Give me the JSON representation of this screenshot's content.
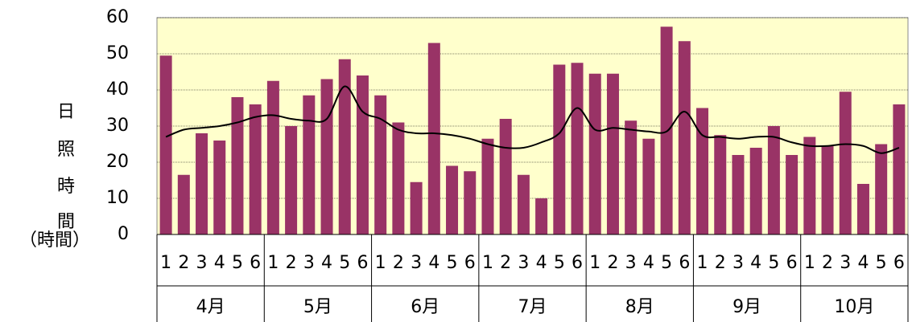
{
  "chart_data": {
    "type": "bar",
    "y_label_lines": [
      "日",
      "照",
      "時",
      "間",
      "（時間）"
    ],
    "categories": [
      "1",
      "2",
      "3",
      "4",
      "5",
      "6",
      "1",
      "2",
      "3",
      "4",
      "5",
      "6",
      "1",
      "2",
      "3",
      "4",
      "5",
      "6",
      "1",
      "2",
      "3",
      "4",
      "5",
      "6",
      "1",
      "2",
      "3",
      "4",
      "5",
      "6",
      "1",
      "2",
      "3",
      "4",
      "5",
      "6",
      "1",
      "2",
      "3",
      "4",
      "5",
      "6"
    ],
    "groups": [
      "4月",
      "5月",
      "6月",
      "7月",
      "8月",
      "9月",
      "10月"
    ],
    "series": [
      {
        "type": "bar",
        "color": "#993366",
        "values": [
          49.5,
          16.5,
          28,
          26,
          38,
          36,
          42.5,
          30,
          38.5,
          43,
          48.5,
          44,
          38.5,
          31,
          14.5,
          53,
          19,
          17.5,
          26.5,
          32,
          16.5,
          10,
          47,
          47.5,
          44.5,
          44.5,
          31.5,
          26.5,
          57.5,
          53.5,
          35,
          27.5,
          22,
          24,
          30,
          22,
          27,
          24.5,
          39.5,
          14,
          25,
          36
        ]
      },
      {
        "type": "line",
        "color": "#000000",
        "values": [
          27,
          29,
          29.5,
          30,
          31,
          32.5,
          33,
          32,
          31.5,
          32,
          41,
          34,
          32,
          29,
          28,
          28,
          27.5,
          26.5,
          25,
          24,
          24,
          25.5,
          28,
          35,
          29,
          29.5,
          29,
          28.5,
          28.5,
          34,
          27.5,
          27,
          26.5,
          27,
          27,
          25.5,
          24.5,
          24.5,
          25,
          24.5,
          22.5,
          24
        ]
      }
    ],
    "ylim": [
      0,
      60
    ],
    "yticks": [
      0,
      10,
      20,
      30,
      40,
      50,
      60
    ],
    "grid": true,
    "plot_background": "#ffffcc"
  }
}
